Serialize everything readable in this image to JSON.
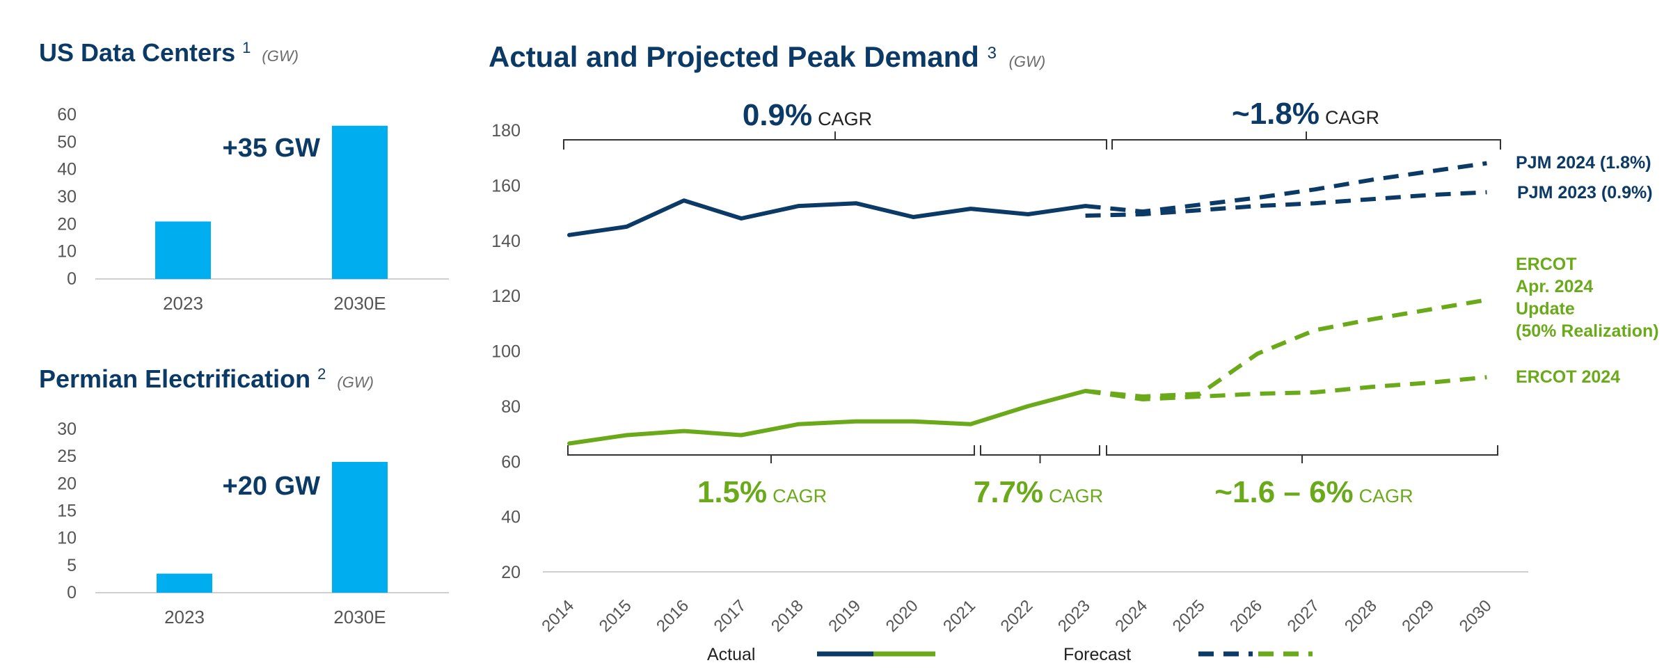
{
  "colors": {
    "navy": "#0b3a66",
    "green": "#6aaa1a",
    "bar": "#00adef",
    "axis": "#cfcfcf",
    "bracket": "#333333",
    "tick": "#555555"
  },
  "chart_data": [
    {
      "type": "bar",
      "title": "US Data Centers",
      "title_sup": "1",
      "unit": "(GW)",
      "categories": [
        "2023",
        "2030E"
      ],
      "values": [
        21,
        56
      ],
      "ylim": [
        0,
        60
      ],
      "yticks": [
        0,
        10,
        20,
        30,
        40,
        50,
        60
      ],
      "annotation": "+35 GW"
    },
    {
      "type": "bar",
      "title": "Permian Electrification",
      "title_sup": "2",
      "unit": "(GW)",
      "categories": [
        "2023",
        "2030E"
      ],
      "values": [
        3.5,
        24
      ],
      "ylim": [
        0,
        30
      ],
      "yticks": [
        0,
        5,
        10,
        15,
        20,
        25,
        30
      ],
      "annotation": "+20 GW"
    },
    {
      "type": "line",
      "title": "Actual and Projected Peak Demand",
      "title_sup": "3",
      "unit": "(GW)",
      "x": [
        "2014",
        "2015",
        "2016",
        "2017",
        "2018",
        "2019",
        "2020",
        "2021",
        "2022",
        "2023",
        "2024",
        "2025",
        "2026",
        "2027",
        "2028",
        "2029",
        "2030"
      ],
      "ylim": [
        20,
        180
      ],
      "yticks": [
        20,
        40,
        60,
        80,
        100,
        120,
        140,
        160,
        180
      ],
      "series": [
        {
          "name": "PJM actual",
          "color": "navy",
          "style": "solid",
          "x": [
            "2014",
            "2015",
            "2016",
            "2017",
            "2018",
            "2019",
            "2020",
            "2021",
            "2022",
            "2023"
          ],
          "values": [
            142,
            145,
            154.5,
            148,
            152.5,
            153.5,
            148.5,
            151.5,
            149.5,
            152.5
          ]
        },
        {
          "name": "PJM 2024 (1.8%)",
          "color": "navy",
          "style": "dashed",
          "x": [
            "2023",
            "2024",
            "2025",
            "2026",
            "2027",
            "2028",
            "2029",
            "2030"
          ],
          "values": [
            152.5,
            150.5,
            153,
            155.5,
            158.5,
            162,
            165,
            168
          ]
        },
        {
          "name": "PJM 2023 (0.9%)",
          "color": "navy",
          "style": "dashed",
          "x": [
            "2023",
            "2024",
            "2025",
            "2026",
            "2027",
            "2028",
            "2029",
            "2030"
          ],
          "values": [
            149,
            149.5,
            151,
            152.5,
            153.5,
            155,
            156.5,
            157.5
          ]
        },
        {
          "name": "ERCOT actual",
          "color": "green",
          "style": "solid",
          "x": [
            "2014",
            "2015",
            "2016",
            "2017",
            "2018",
            "2019",
            "2020",
            "2021",
            "2022",
            "2023"
          ],
          "values": [
            66.5,
            69.5,
            71,
            69.5,
            73.5,
            74.5,
            74.5,
            73.5,
            80,
            85.5
          ]
        },
        {
          "name": "ERCOT Apr. 2024 Update (50% Realization)",
          "color": "green",
          "style": "dashed",
          "x": [
            "2023",
            "2024",
            "2025",
            "2026",
            "2027",
            "2028",
            "2029",
            "2030"
          ],
          "values": [
            85.5,
            83.5,
            84.5,
            99,
            107.5,
            111.5,
            115,
            118.5
          ]
        },
        {
          "name": "ERCOT 2024",
          "color": "green",
          "style": "dashed",
          "x": [
            "2023",
            "2024",
            "2025",
            "2026",
            "2027",
            "2028",
            "2029",
            "2030"
          ],
          "values": [
            85.5,
            82.5,
            83.5,
            84.5,
            85,
            87,
            88.5,
            90.5
          ]
        }
      ],
      "line_labels": [
        {
          "text": "PJM 2024 (1.8%)",
          "color": "navy"
        },
        {
          "text": "PJM 2023 (0.9%)",
          "color": "navy"
        },
        {
          "text": "ERCOT",
          "color": "green"
        },
        {
          "text": "Apr. 2024",
          "color": "green"
        },
        {
          "text": "Update",
          "color": "green"
        },
        {
          "text": "(50% Realization)",
          "color": "green"
        },
        {
          "text": "ERCOT 2024",
          "color": "green"
        }
      ],
      "cagr": [
        {
          "value": "0.9%",
          "label": "CAGR",
          "color": "navy",
          "from": "2014",
          "to": "2023",
          "position": "above"
        },
        {
          "value": "~1.8%",
          "label": "CAGR",
          "color": "navy",
          "from": "2024",
          "to": "2030",
          "position": "above"
        },
        {
          "value": "1.5%",
          "label": "CAGR",
          "color": "green",
          "from": "2014",
          "to": "2021",
          "position": "below"
        },
        {
          "value": "7.7%",
          "label": "CAGR",
          "color": "green",
          "from": "2021",
          "to": "2023",
          "position": "below"
        },
        {
          "value": "~1.6 – 6%",
          "label": "CAGR",
          "color": "green",
          "from": "2023",
          "to": "2030",
          "position": "below"
        }
      ],
      "legend": [
        {
          "label": "Actual",
          "style": "solid"
        },
        {
          "label": "Forecast",
          "style": "dashed"
        }
      ]
    }
  ]
}
